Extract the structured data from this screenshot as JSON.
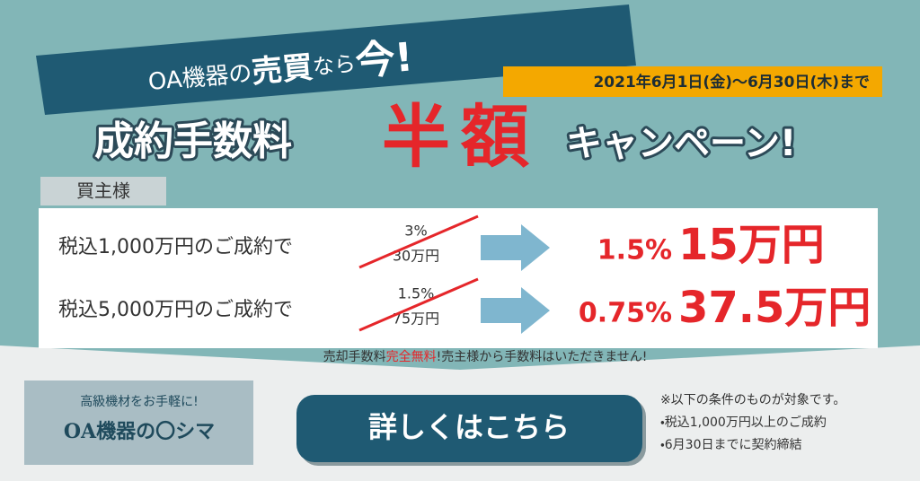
{
  "headline": {
    "parts": [
      "OA機器の",
      "売買",
      "なら",
      "今!"
    ]
  },
  "period": "2021年6月1日(金)〜6月30日(木)まで",
  "campaign": {
    "prefix": "成約手数料",
    "highlight": "半額",
    "suffix": "キャンペーン!"
  },
  "buyer_tag": "買主様",
  "rows": [
    {
      "condition": "税込1,000万円のご成約で",
      "old_rate": "3%",
      "old_fee": "30万円",
      "new_rate": "1.5%",
      "new_fee": "15万円"
    },
    {
      "condition": "税込5,000万円のご成約で",
      "old_rate": "1.5%",
      "old_fee": "75万円",
      "new_rate": "0.75%",
      "new_fee": "37.5万円"
    }
  ],
  "note": {
    "parts": [
      "売却手数料",
      "完全無料",
      "!売主様から手数料はいただきません!"
    ]
  },
  "logo": {
    "tagline": "高級機材をお手軽に!",
    "name": "OA機器の〇シマ"
  },
  "button": "詳しくはこちら",
  "conditions": [
    "※以下の条件のものが対象です。",
    "・税込1,000万円以上のご成約",
    "・6月30日までに契約締結"
  ]
}
